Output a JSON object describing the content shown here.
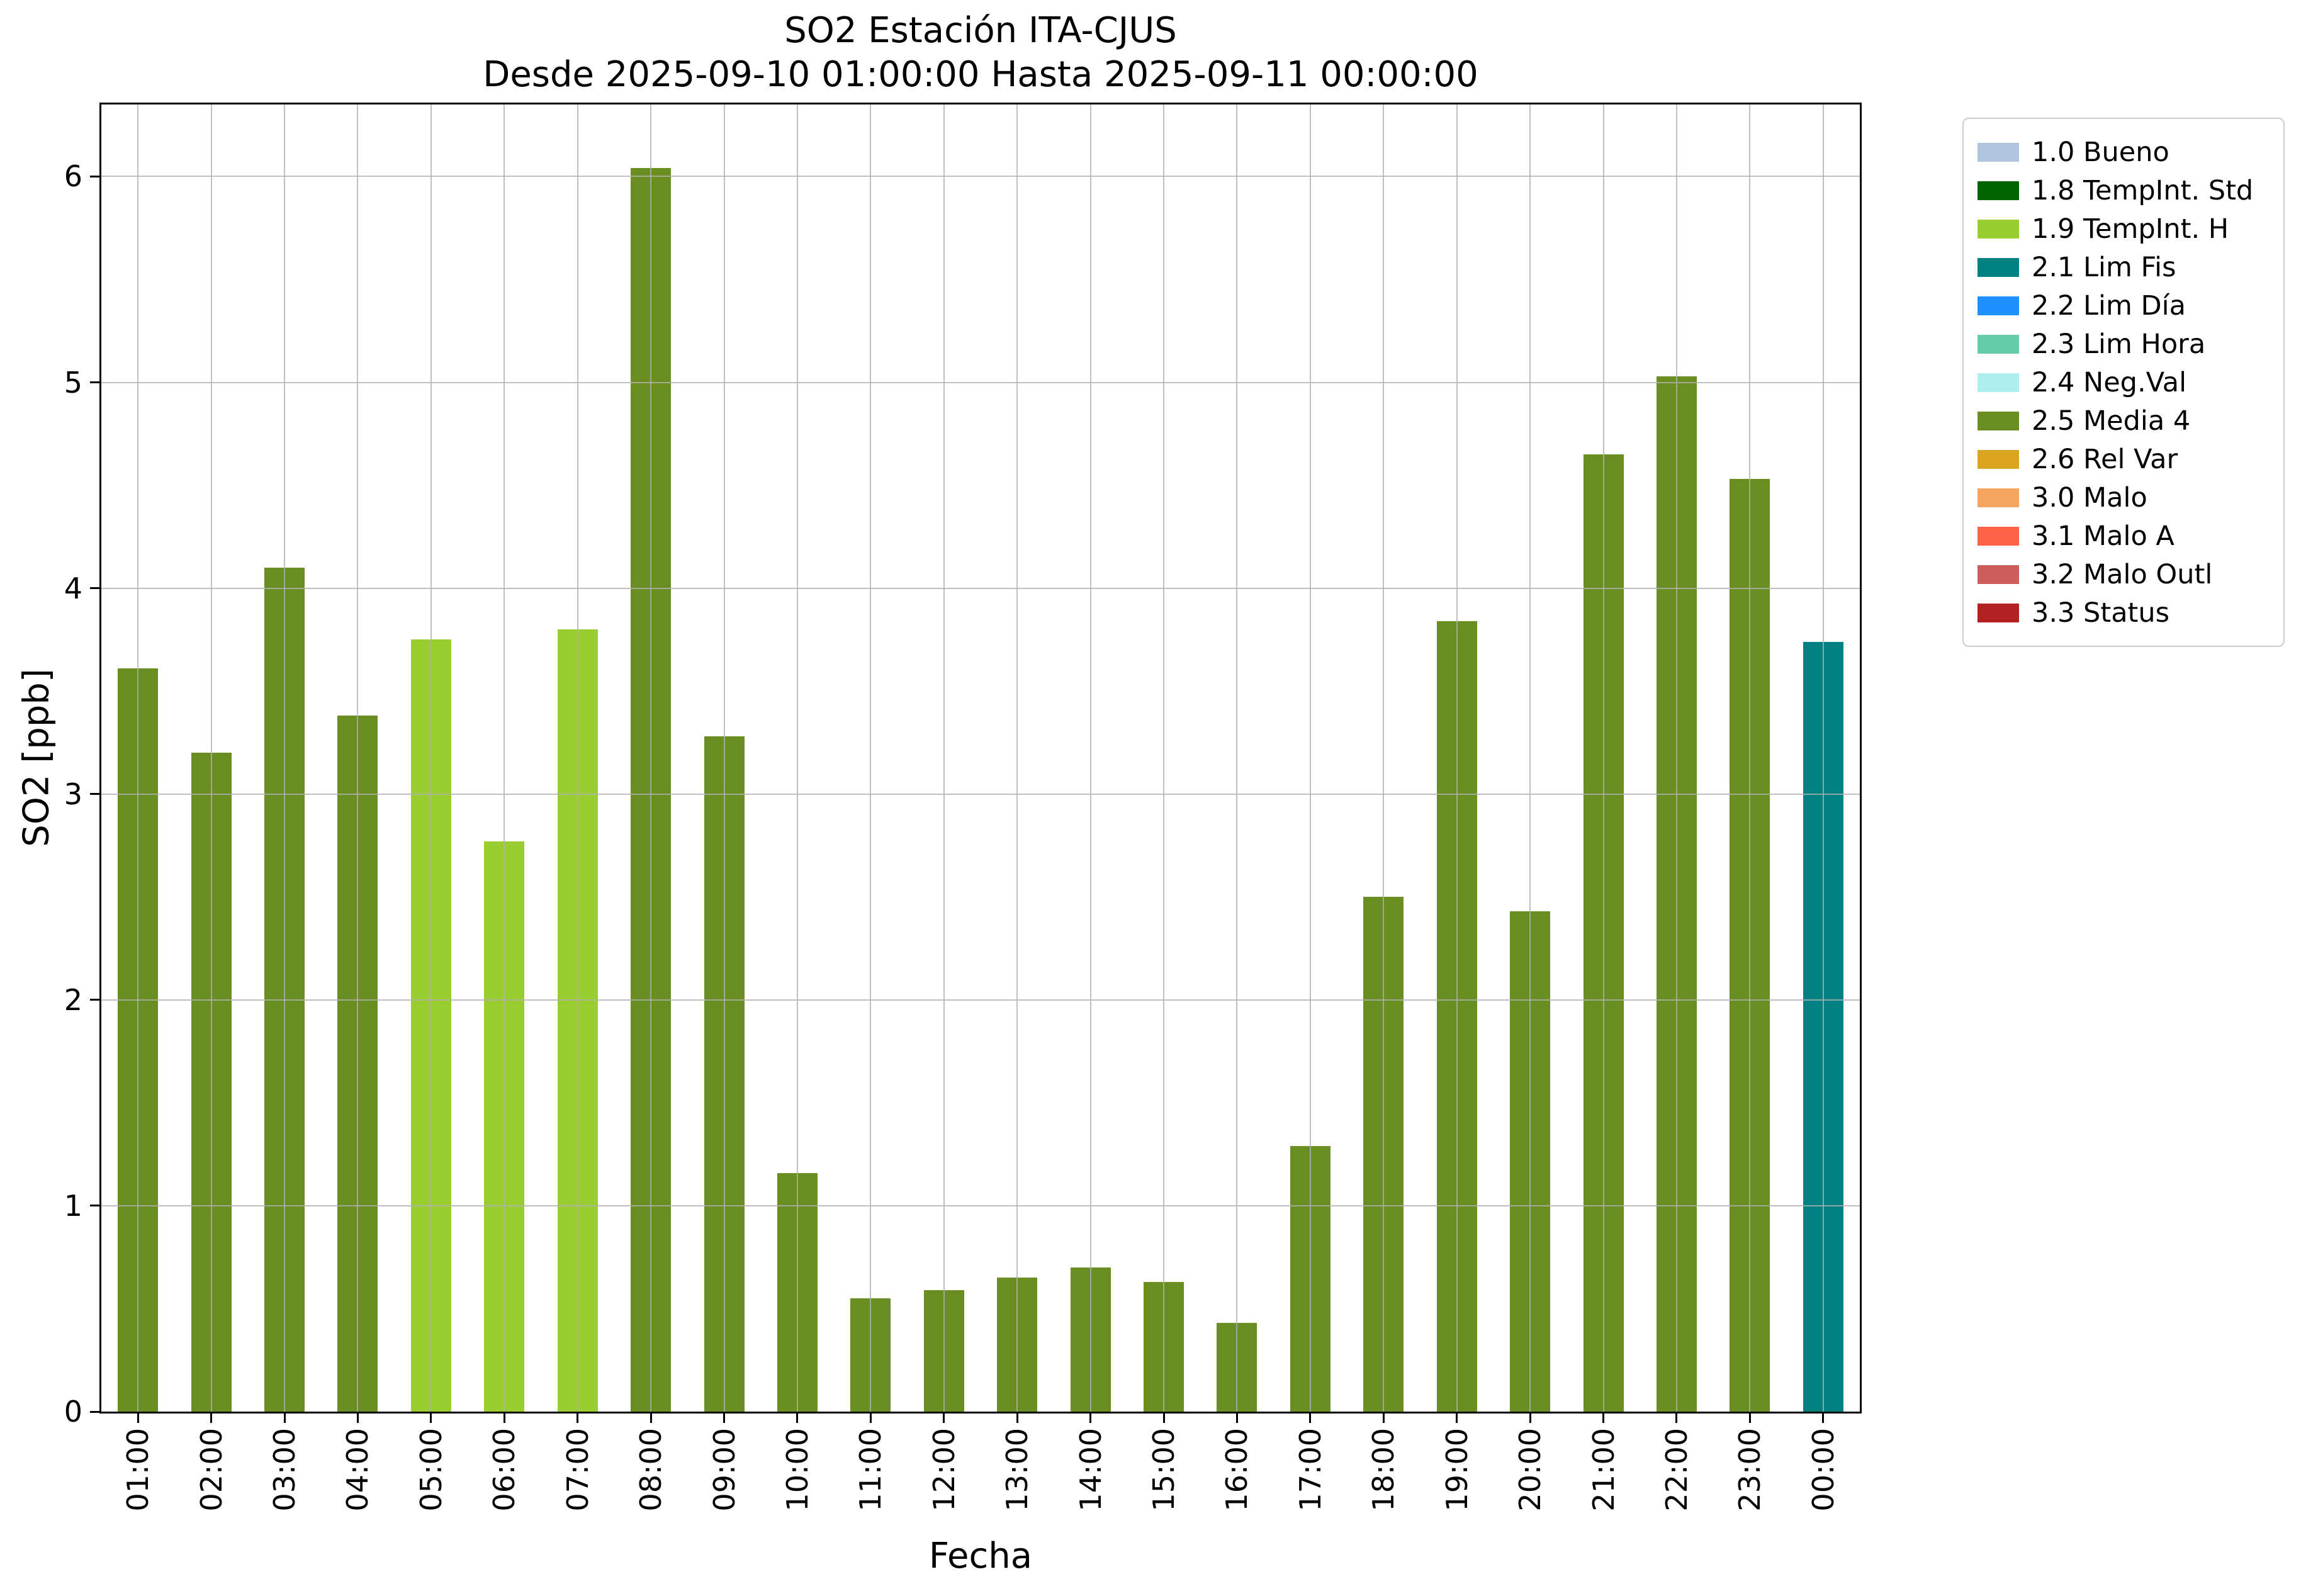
{
  "chart_data": {
    "type": "bar",
    "title": "SO2 Estación ITA-CJUS",
    "subtitle": "Desde 2025-09-10 01:00:00 Hasta 2025-09-11 00:00:00",
    "xlabel": "Fecha",
    "ylabel": "SO2 [ppb]",
    "ylim": [
      0,
      6.35
    ],
    "yticks": [
      0,
      1,
      2,
      3,
      4,
      5,
      6
    ],
    "grid": true,
    "grid_color": "#b0b0b0",
    "legend_position": "upper-right-outside",
    "bars": [
      {
        "time": "01:00",
        "value": 3.61,
        "category": "2.5 Media 4"
      },
      {
        "time": "02:00",
        "value": 3.2,
        "category": "2.5 Media 4"
      },
      {
        "time": "03:00",
        "value": 4.1,
        "category": "2.5 Media 4"
      },
      {
        "time": "04:00",
        "value": 3.38,
        "category": "2.5 Media 4"
      },
      {
        "time": "05:00",
        "value": 3.75,
        "category": "1.9 TempInt. H"
      },
      {
        "time": "06:00",
        "value": 2.77,
        "category": "1.9 TempInt. H"
      },
      {
        "time": "07:00",
        "value": 3.8,
        "category": "1.9 TempInt. H"
      },
      {
        "time": "08:00",
        "value": 6.04,
        "category": "2.5 Media 4"
      },
      {
        "time": "09:00",
        "value": 3.28,
        "category": "2.5 Media 4"
      },
      {
        "time": "10:00",
        "value": 1.16,
        "category": "2.5 Media 4"
      },
      {
        "time": "11:00",
        "value": 0.55,
        "category": "2.5 Media 4"
      },
      {
        "time": "12:00",
        "value": 0.59,
        "category": "2.5 Media 4"
      },
      {
        "time": "13:00",
        "value": 0.65,
        "category": "2.5 Media 4"
      },
      {
        "time": "14:00",
        "value": 0.7,
        "category": "2.5 Media 4"
      },
      {
        "time": "15:00",
        "value": 0.63,
        "category": "2.5 Media 4"
      },
      {
        "time": "16:00",
        "value": 0.43,
        "category": "2.5 Media 4"
      },
      {
        "time": "17:00",
        "value": 1.29,
        "category": "2.5 Media 4"
      },
      {
        "time": "18:00",
        "value": 2.5,
        "category": "2.5 Media 4"
      },
      {
        "time": "19:00",
        "value": 3.84,
        "category": "2.5 Media 4"
      },
      {
        "time": "20:00",
        "value": 2.43,
        "category": "2.5 Media 4"
      },
      {
        "time": "21:00",
        "value": 4.65,
        "category": "2.5 Media 4"
      },
      {
        "time": "22:00",
        "value": 5.03,
        "category": "2.5 Media 4"
      },
      {
        "time": "23:00",
        "value": 4.53,
        "category": "2.5 Media 4"
      },
      {
        "time": "00:00",
        "value": 3.74,
        "category": "2.1 Lim Fis"
      }
    ],
    "legend": [
      {
        "label": "1.0 Bueno",
        "color": "#B0C4DE"
      },
      {
        "label": "1.8 TempInt. Std",
        "color": "#006400"
      },
      {
        "label": "1.9 TempInt. H",
        "color": "#9ACD32"
      },
      {
        "label": "2.1 Lim Fis",
        "color": "#008080"
      },
      {
        "label": "2.2 Lim Día",
        "color": "#1E90FF"
      },
      {
        "label": "2.3 Lim Hora",
        "color": "#66CDAA"
      },
      {
        "label": "2.4 Neg.Val",
        "color": "#AFEEEE"
      },
      {
        "label": "2.5 Media 4",
        "color": "#6B8E23"
      },
      {
        "label": "2.6 Rel Var",
        "color": "#DAA520"
      },
      {
        "label": "3.0 Malo",
        "color": "#F4A460"
      },
      {
        "label": "3.1 Malo A",
        "color": "#FF6347"
      },
      {
        "label": "3.2 Malo Outl",
        "color": "#CD5C5C"
      },
      {
        "label": "3.3 Status",
        "color": "#B22222"
      }
    ]
  }
}
